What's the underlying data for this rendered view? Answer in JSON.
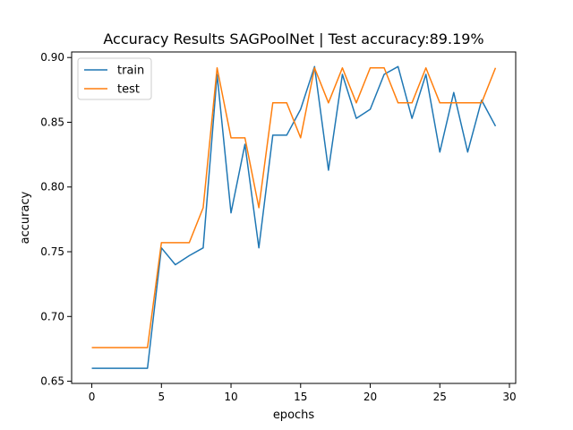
{
  "chart_data": {
    "type": "line",
    "title": "Accuracy Results SAGPoolNet | Test accuracy:89.19%",
    "xlabel": "epochs",
    "ylabel": "accuracy",
    "xlim": [
      -1.45,
      30.45
    ],
    "ylim": [
      0.6483,
      0.9043
    ],
    "xticks": [
      0,
      5,
      10,
      15,
      20,
      25,
      30
    ],
    "xtick_labels": [
      "0",
      "5",
      "10",
      "15",
      "20",
      "25",
      "30"
    ],
    "yticks": [
      0.65,
      0.7,
      0.75,
      0.8,
      0.85,
      0.9
    ],
    "ytick_labels": [
      "0.65",
      "0.70",
      "0.75",
      "0.80",
      "0.85",
      "0.90"
    ],
    "grid": false,
    "legend_position": "top-left",
    "x": [
      0,
      1,
      2,
      3,
      4,
      5,
      6,
      7,
      8,
      9,
      10,
      11,
      12,
      13,
      14,
      15,
      16,
      17,
      18,
      19,
      20,
      21,
      22,
      23,
      24,
      25,
      26,
      27,
      28,
      29
    ],
    "series": [
      {
        "name": "train",
        "color": "#1f77b4",
        "values": [
          0.66,
          0.66,
          0.66,
          0.66,
          0.66,
          0.753,
          0.74,
          0.747,
          0.753,
          0.887,
          0.78,
          0.833,
          0.753,
          0.84,
          0.84,
          0.86,
          0.893,
          0.813,
          0.887,
          0.853,
          0.86,
          0.887,
          0.893,
          0.853,
          0.887,
          0.827,
          0.873,
          0.827,
          0.867,
          0.847
        ]
      },
      {
        "name": "test",
        "color": "#ff7f0e",
        "values": [
          0.676,
          0.676,
          0.676,
          0.676,
          0.676,
          0.757,
          0.757,
          0.757,
          0.784,
          0.892,
          0.838,
          0.838,
          0.784,
          0.865,
          0.865,
          0.838,
          0.892,
          0.865,
          0.892,
          0.865,
          0.892,
          0.892,
          0.865,
          0.865,
          0.892,
          0.865,
          0.865,
          0.865,
          0.865,
          0.892
        ]
      }
    ]
  }
}
